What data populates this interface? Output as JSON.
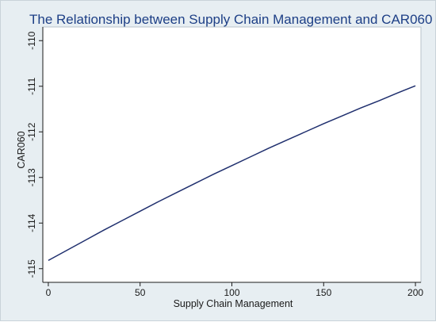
{
  "chart_data": {
    "type": "line",
    "title": "The Relationship between Supply Chain Management and CAR060",
    "xlabel": "Supply Chain Management",
    "ylabel": "CAR060",
    "xlim": [
      -3,
      203
    ],
    "ylim": [
      -115.3,
      -109.7
    ],
    "xticks": [
      0,
      50,
      100,
      150,
      200
    ],
    "yticks": [
      -115,
      -114,
      -113,
      -112,
      -111,
      -110
    ],
    "grid": "none",
    "series": [
      {
        "x": [
          0,
          10,
          20,
          30,
          40,
          50,
          60,
          70,
          80,
          90,
          100,
          110,
          120,
          130,
          140,
          150,
          160,
          170,
          180,
          190,
          200
        ],
        "y": [
          -114.82,
          -114.6,
          -114.38,
          -114.16,
          -113.95,
          -113.74,
          -113.53,
          -113.33,
          -113.13,
          -112.93,
          -112.74,
          -112.55,
          -112.36,
          -112.18,
          -112.0,
          -111.82,
          -111.65,
          -111.48,
          -111.32,
          -111.15,
          -110.99
        ]
      }
    ],
    "colors": {
      "line": "#1f2f6e",
      "plot_bg": "#ffffff",
      "outer_bg": "#e7eef2",
      "title": "#1d3f86"
    }
  }
}
